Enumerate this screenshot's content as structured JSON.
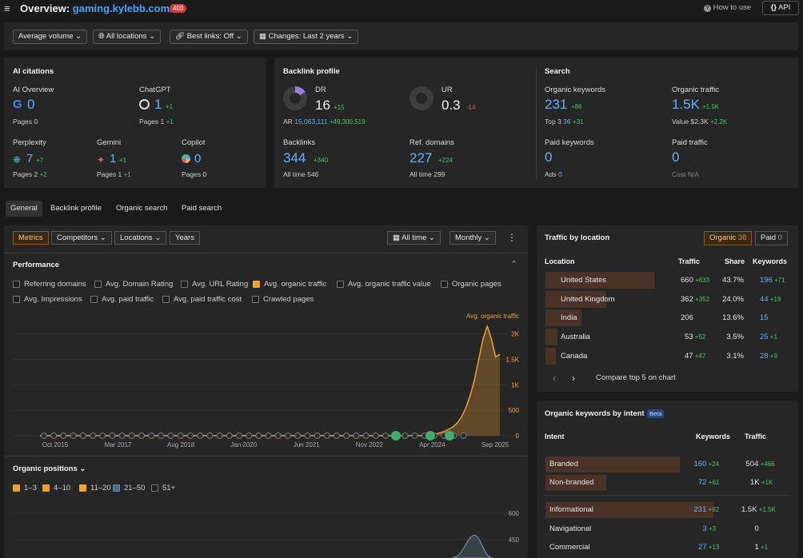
{
  "header": {
    "title_prefix": "Overview:",
    "domain": "gaming.kylebb.com/",
    "status_badge": "403",
    "how_to": "How to use",
    "api": "API"
  },
  "filters": [
    "Average volume",
    "All locations",
    "Best links: Off",
    "Changes: Last 2 years"
  ],
  "ai_citations": {
    "title": "AI citations",
    "items": [
      {
        "name": "AI Overview",
        "value": "0",
        "delta": "",
        "pages_label": "Pages",
        "pages": "0",
        "pages_delta": ""
      },
      {
        "name": "ChatGPT",
        "value": "1",
        "delta": "+1",
        "pages_label": "Pages",
        "pages": "1",
        "pages_delta": "+1"
      },
      {
        "name": "Perplexity",
        "value": "7",
        "delta": "+7",
        "pages_label": "Pages",
        "pages": "2",
        "pages_delta": "+2"
      },
      {
        "name": "Gemini",
        "value": "1",
        "delta": "+1",
        "pages_label": "Pages",
        "pages": "1",
        "pages_delta": "+1"
      },
      {
        "name": "Copilot",
        "value": "0",
        "delta": "",
        "pages_label": "Pages",
        "pages": "0",
        "pages_delta": ""
      }
    ]
  },
  "backlink_profile": {
    "title": "Backlink profile",
    "dr_label": "DR",
    "dr": "16",
    "dr_delta": "+15",
    "ar_label": "AR",
    "ar": "15,063,111",
    "ar_delta": "+49,300,519",
    "ur_label": "UR",
    "ur": "0.3",
    "ur_delta": "-14",
    "backlinks_label": "Backlinks",
    "backlinks": "344",
    "backlinks_delta": "+340",
    "backlinks_all": "All time 546",
    "refdomains_label": "Ref. domains",
    "refdomains": "227",
    "refdomains_delta": "+224",
    "refdomains_all": "All time 299"
  },
  "search": {
    "title": "Search",
    "ok_label": "Organic keywords",
    "ok": "231",
    "ok_delta": "+86",
    "top3_label": "Top 3",
    "top3": "36",
    "top3_delta": "+31",
    "ot_label": "Organic traffic",
    "ot": "1.5K",
    "ot_delta": "+1.5K",
    "value_label": "Value",
    "value": "$2.3K",
    "value_delta": "+2.2K",
    "pk_label": "Paid keywords",
    "pk": "0",
    "ads_label": "Ads",
    "ads": "0",
    "pt_label": "Paid traffic",
    "pt": "0",
    "cost_label": "Cost",
    "cost": "N/A"
  },
  "tabs": [
    "General",
    "Backlink profile",
    "Organic search",
    "Paid search"
  ],
  "chart_controls": {
    "metrics": "Metrics",
    "competitors": "Competitors",
    "locations": "Locations",
    "years": "Years",
    "all_time": "All time",
    "monthly": "Monthly"
  },
  "performance": {
    "title": "Performance",
    "checks": [
      {
        "label": "Referring domains",
        "on": false
      },
      {
        "label": "Avg. Domain Rating",
        "on": false
      },
      {
        "label": "Avg. URL Rating",
        "on": false
      },
      {
        "label": "Avg. organic traffic",
        "on": true
      },
      {
        "label": "Avg. organic traffic value",
        "on": false
      },
      {
        "label": "Organic pages",
        "on": false
      },
      {
        "label": "Avg. Impressions",
        "on": false
      },
      {
        "label": "Avg. paid traffic",
        "on": false
      },
      {
        "label": "Avg. paid traffic cost",
        "on": false
      },
      {
        "label": "Crawled pages",
        "on": false
      }
    ]
  },
  "chart_data": {
    "type": "area",
    "series": [
      {
        "name": "Avg. organic traffic",
        "color": "#f0a030",
        "values": [
          0,
          0,
          0,
          0,
          0,
          0,
          0,
          0,
          0,
          0,
          0,
          0,
          0,
          0,
          0,
          0,
          0,
          0,
          0,
          0,
          0,
          0,
          0,
          0,
          0,
          0,
          0,
          0,
          0,
          0,
          0,
          0,
          0,
          0,
          0,
          0,
          0,
          0,
          0,
          0,
          0,
          0,
          0,
          0,
          0,
          0,
          0,
          0,
          0,
          0,
          0,
          0,
          0,
          0,
          0,
          0,
          0,
          0,
          0,
          0,
          0,
          0,
          0,
          0,
          0,
          0,
          0,
          0,
          0,
          0,
          0,
          0,
          0,
          0,
          0,
          0,
          0,
          0,
          0,
          0,
          0,
          0,
          0,
          0,
          0,
          0,
          0,
          0,
          0,
          0,
          0,
          5,
          10,
          20,
          40,
          60,
          90,
          130,
          180,
          260,
          380,
          560,
          800,
          1100,
          1500,
          1900,
          2150,
          1900,
          1550,
          1600
        ]
      }
    ],
    "x_ticks": [
      "Oct 2015",
      "Mar 2017",
      "Aug 2018",
      "Jan 2020",
      "Jun 2021",
      "Nov 2022",
      "Apr 2024",
      "Sep 2025"
    ],
    "y_ticks": [
      "0",
      "500",
      "1K",
      "1.5K",
      "2K"
    ],
    "ylim": [
      0,
      2200
    ]
  },
  "organic_positions": {
    "title": "Organic positions",
    "checks": [
      {
        "label": "1–3",
        "on": true
      },
      {
        "label": "4–10",
        "on": true
      },
      {
        "label": "11–20",
        "on": true
      },
      {
        "label": "21–50",
        "on": true
      },
      {
        "label": "51+",
        "on": false
      }
    ],
    "y_ticks": [
      "600",
      "450"
    ]
  },
  "traffic_by_location": {
    "title": "Traffic by location",
    "organic_label": "Organic",
    "organic_count": "38",
    "paid_label": "Paid",
    "paid_count": "0",
    "headers": [
      "Location",
      "Traffic",
      "Share",
      "Keywords"
    ],
    "rows": [
      {
        "location": "United States",
        "traffic": "660",
        "traffic_delta": "+633",
        "share": "43.7%",
        "share_value": 43.7,
        "keywords": "196",
        "keywords_delta": "+71"
      },
      {
        "location": "United Kingdom",
        "traffic": "362",
        "traffic_delta": "+352",
        "share": "24.0%",
        "share_value": 24.0,
        "keywords": "44",
        "keywords_delta": "+19"
      },
      {
        "location": "India",
        "traffic": "206",
        "traffic_delta": "",
        "share": "13.6%",
        "share_value": 13.6,
        "keywords": "15",
        "keywords_delta": ""
      },
      {
        "location": "Australia",
        "traffic": "53",
        "traffic_delta": "+52",
        "share": "3.5%",
        "share_value": 3.5,
        "keywords": "25",
        "keywords_delta": "+1"
      },
      {
        "location": "Canada",
        "traffic": "47",
        "traffic_delta": "+47",
        "share": "3.1%",
        "share_value": 3.1,
        "keywords": "28",
        "keywords_delta": "+9"
      }
    ],
    "compare": "Compare top 5 on chart"
  },
  "keywords_by_intent": {
    "title": "Organic keywords by intent",
    "beta": "Beta",
    "headers": [
      "Intent",
      "Keywords",
      "Traffic"
    ],
    "rows": [
      {
        "intent": "Branded",
        "keywords": "160",
        "keywords_delta": "+24",
        "traffic": "504",
        "traffic_delta": "+466",
        "bar": 0.8
      },
      {
        "intent": "Non-branded",
        "keywords": "72",
        "keywords_delta": "+61",
        "traffic": "1K",
        "traffic_delta": "+1K",
        "bar": 0.36
      },
      {
        "intent": "Informational",
        "keywords": "231",
        "keywords_delta": "+92",
        "traffic": "1.5K",
        "traffic_delta": "+1.5K",
        "bar": 1.0
      },
      {
        "intent": "Navigational",
        "keywords": "3",
        "keywords_delta": "+3",
        "traffic": "0",
        "traffic_delta": "",
        "bar": 0.0
      },
      {
        "intent": "Commercial",
        "keywords": "27",
        "keywords_delta": "+13",
        "traffic": "1",
        "traffic_delta": "+1",
        "bar": 0.0
      }
    ]
  }
}
